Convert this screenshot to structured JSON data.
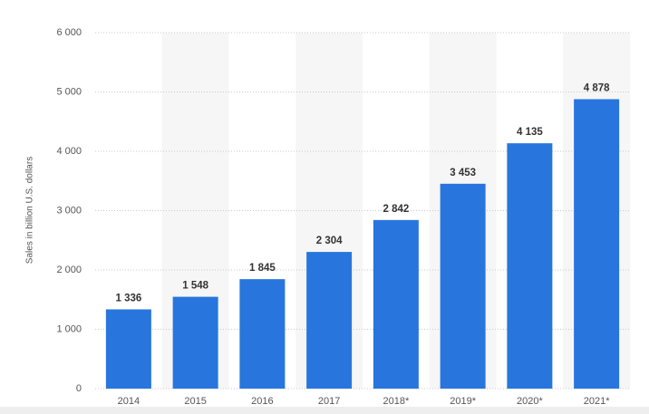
{
  "chart_data": {
    "type": "bar",
    "y_label": "Sales in billion U.S. dollars",
    "categories": [
      "2014",
      "2015",
      "2016",
      "2017",
      "2018*",
      "2019*",
      "2020*",
      "2021*"
    ],
    "values": [
      1336,
      1548,
      1845,
      2304,
      2842,
      3453,
      4135,
      4878
    ],
    "value_labels": [
      "1 336",
      "1 548",
      "1 845",
      "2 304",
      "2 842",
      "3 453",
      "4 135",
      "4 878"
    ],
    "color": "#2876dd",
    "ylim": [
      0,
      6000
    ],
    "yticks": [
      0,
      {
        "value": 1000,
        "label": "1 000"
      },
      {
        "value": 2000,
        "label": "2 000"
      },
      {
        "value": 3000,
        "label": "3 000"
      },
      {
        "value": 4000,
        "label": "4 000"
      },
      {
        "value": 5000,
        "label": "5 000"
      },
      {
        "value": 6000,
        "label": "6 000"
      }
    ],
    "grid": true
  }
}
